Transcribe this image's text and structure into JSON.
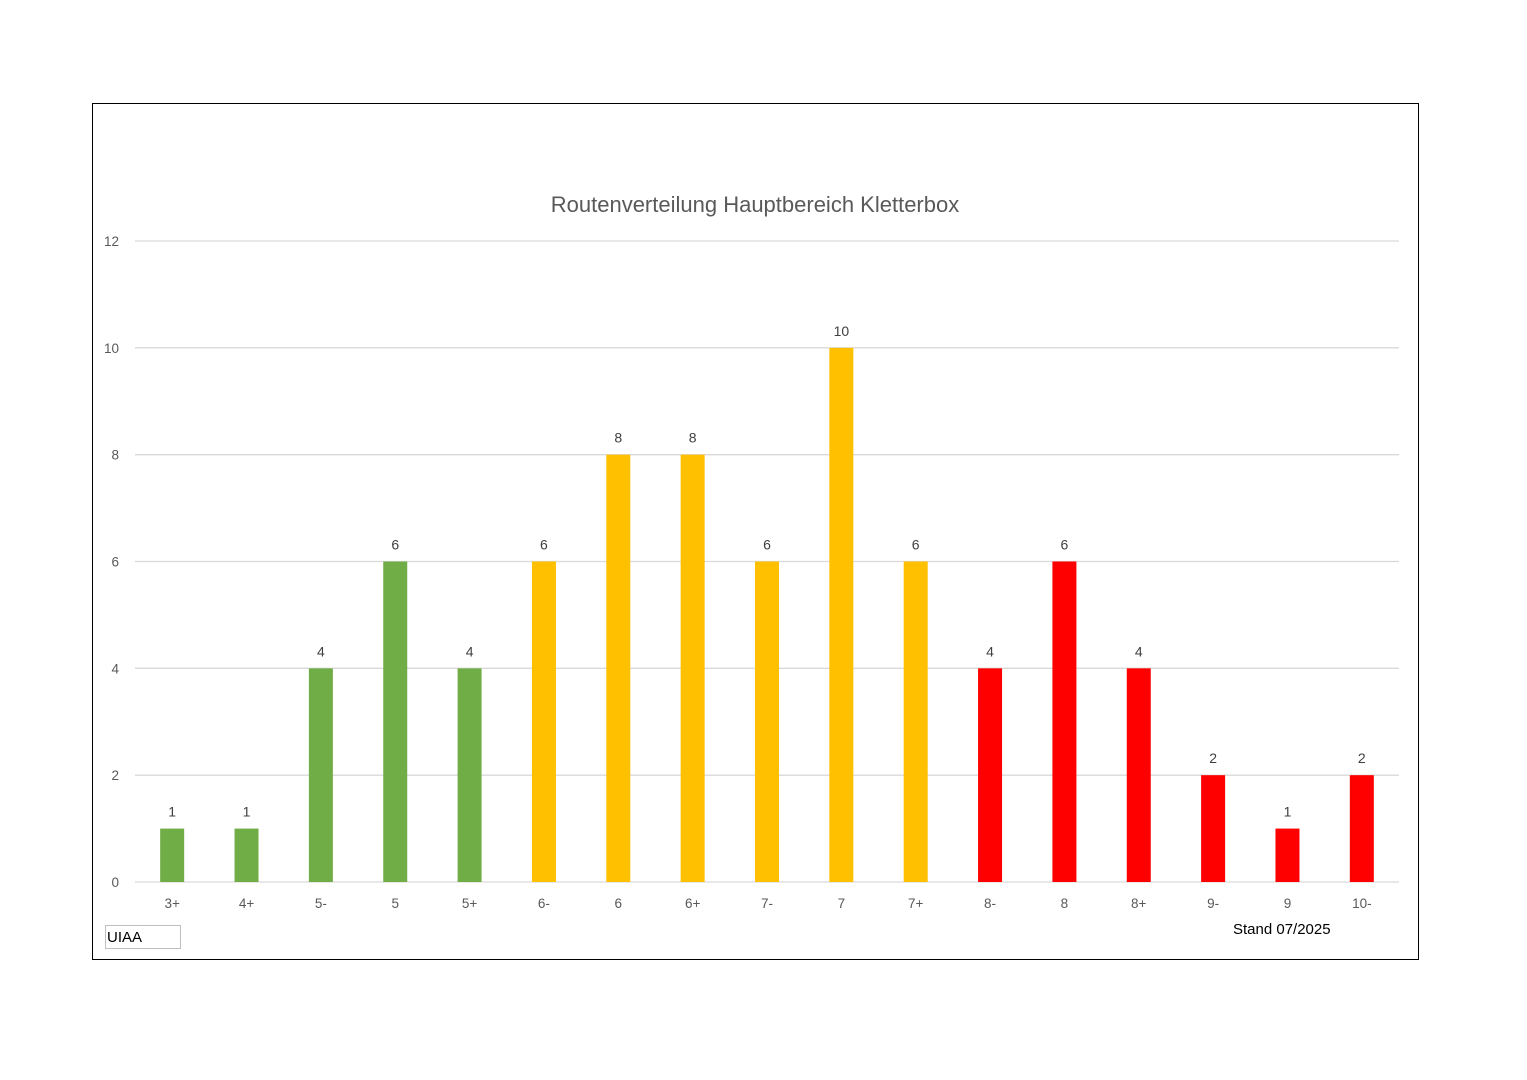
{
  "chart_data": {
    "type": "bar",
    "title": "Routenverteilung Hauptbereich Kletterbox",
    "xlabel": "",
    "ylabel": "",
    "ylim": [
      0,
      12
    ],
    "yticks": [
      "0",
      "2",
      "4",
      "6",
      "8",
      "10",
      "12"
    ],
    "grid": true,
    "legend": "none",
    "categories": [
      "3+",
      "4+",
      "5-",
      "5",
      "5+",
      "6-",
      "6",
      "6+",
      "7-",
      "7",
      "7+",
      "8-",
      "8",
      "8+",
      "9-",
      "9",
      "10-"
    ],
    "values": [
      1,
      1,
      4,
      6,
      4,
      6,
      8,
      8,
      6,
      10,
      6,
      4,
      6,
      4,
      2,
      1,
      2
    ],
    "bar_colors": [
      "#70ad47",
      "#70ad47",
      "#70ad47",
      "#70ad47",
      "#70ad47",
      "#ffc000",
      "#ffc000",
      "#ffc000",
      "#ffc000",
      "#ffc000",
      "#ffc000",
      "#ff0000",
      "#ff0000",
      "#ff0000",
      "#ff0000",
      "#ff0000",
      "#ff0000"
    ],
    "data_labels": [
      "1",
      "1",
      "4",
      "6",
      "4",
      "6",
      "8",
      "8",
      "6",
      "10",
      "6",
      "4",
      "6",
      "4",
      "2",
      "1",
      "2"
    ]
  },
  "annotations": {
    "scale_label": "UIAA",
    "date_note": "Stand 07/2025"
  }
}
